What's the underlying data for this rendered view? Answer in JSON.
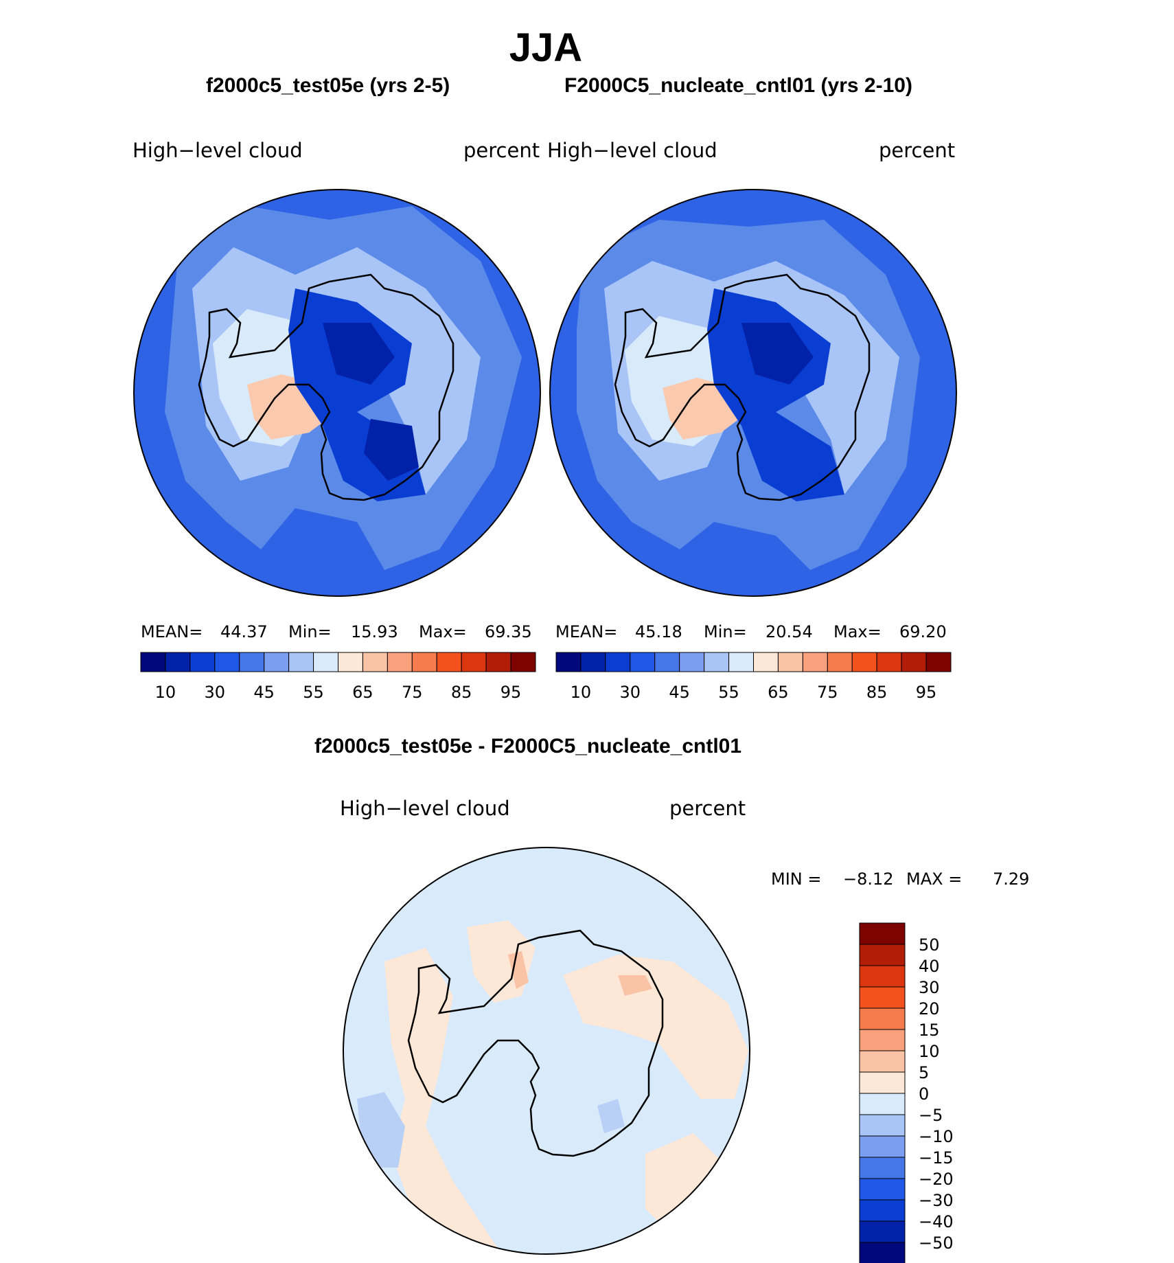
{
  "title": "JJA",
  "diff_title": "f2000c5_test05e - F2000C5_nucleate_cntl01",
  "panels": [
    {
      "case_title": "f2000c5_test05e (yrs 2-5)",
      "variable": "High−level  cloud",
      "units": "percent",
      "stats": {
        "mean_label": "MEAN=",
        "mean": "44.37",
        "min_label": "Min=",
        "min": "15.93",
        "max_label": "Max=",
        "max": "69.35"
      }
    },
    {
      "case_title": "F2000C5_nucleate_cntl01 (yrs 2-10)",
      "variable": "High−level  cloud",
      "units": "percent",
      "stats": {
        "mean_label": "MEAN=",
        "mean": "45.18",
        "min_label": "Min=",
        "min": "20.54",
        "max_label": "Max=",
        "max": "69.20"
      }
    }
  ],
  "diff_panel": {
    "variable": "High−level  cloud",
    "units": "percent",
    "stats": {
      "min_label": "MIN =",
      "min": "−8.12",
      "max_label": "MAX =",
      "max": "7.29"
    }
  },
  "colorbar": {
    "colors": [
      "#00087a",
      "#0021a8",
      "#0a3ed2",
      "#2157e6",
      "#4677e8",
      "#7b9ef0",
      "#a9c4f6",
      "#d9eafb",
      "#fde7d7",
      "#fbc3a6",
      "#f9a07d",
      "#f67c4d",
      "#f3521e",
      "#dc3610",
      "#b21d07",
      "#7d0300"
    ],
    "labels": [
      "10",
      "30",
      "45",
      "55",
      "65",
      "75",
      "85",
      "95"
    ]
  },
  "diff_colorbar": {
    "colors": [
      "#7d0300",
      "#b21d07",
      "#dc3610",
      "#f3521e",
      "#f67c4d",
      "#f9a07d",
      "#fbc3a6",
      "#fde7d7",
      "#d9eafb",
      "#a9c4f6",
      "#7b9ef0",
      "#4677e8",
      "#2157e6",
      "#0a3ed2",
      "#0021a8",
      "#00087a"
    ],
    "labels": [
      "50",
      "40",
      "30",
      "20",
      "15",
      "10",
      "5",
      "0",
      "−5",
      "−10",
      "−15",
      "−20",
      "−30",
      "−40",
      "−50"
    ]
  }
}
